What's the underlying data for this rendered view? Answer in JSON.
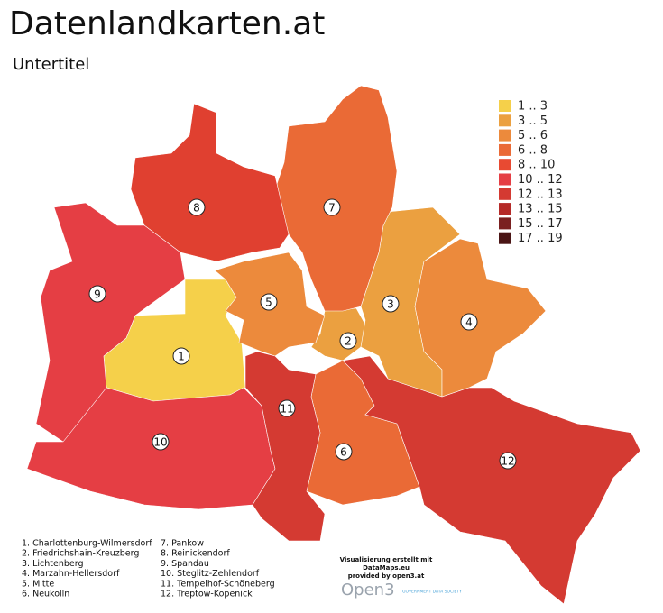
{
  "header": {
    "title": "Datenlandkarten.at",
    "subtitle": "Untertitel"
  },
  "legend": [
    {
      "label": "1 .. 3",
      "color": "#f5d04a"
    },
    {
      "label": "3 .. 5",
      "color": "#eba040"
    },
    {
      "label": "5 .. 6",
      "color": "#ec8a3c"
    },
    {
      "label": "6 .. 8",
      "color": "#ea6a36"
    },
    {
      "label": "8 .. 10",
      "color": "#e84a32"
    },
    {
      "label": "10 .. 12",
      "color": "#e53e44"
    },
    {
      "label": "12 .. 13",
      "color": "#d43a32"
    },
    {
      "label": "13 .. 15",
      "color": "#b52a28"
    },
    {
      "label": "15 .. 17",
      "color": "#7a2020"
    },
    {
      "label": "17 .. 19",
      "color": "#4a1515"
    }
  ],
  "districts": [
    {
      "marker": "1",
      "list_entry": "1. Charlottenburg-Wilmersdorf",
      "color": "#f5d04a"
    },
    {
      "marker": "2",
      "list_entry": "2. Friedrichshain-Kreuzberg",
      "color": "#eba040"
    },
    {
      "marker": "3",
      "list_entry": "3. Lichtenberg",
      "color": "#eba040"
    },
    {
      "marker": "4",
      "list_entry": "4. Marzahn-Hellersdorf",
      "color": "#ec8a3c"
    },
    {
      "marker": "5",
      "list_entry": "5. Mitte",
      "color": "#ec8a3c"
    },
    {
      "marker": "6",
      "list_entry": "6. Neukölln",
      "color": "#ea6a36"
    },
    {
      "marker": "7",
      "list_entry": "7. Pankow",
      "color": "#ea6a36"
    },
    {
      "marker": "8",
      "list_entry": "8. Reinickendorf",
      "color": "#e04030"
    },
    {
      "marker": "9",
      "list_entry": "9. Spandau",
      "color": "#e53e44"
    },
    {
      "marker": "10",
      "list_entry": "10. Steglitz-Zehlendorf",
      "color": "#e53e44"
    },
    {
      "marker": "11",
      "list_entry": "11. Tempelhof-Schöneberg",
      "color": "#d43a32"
    },
    {
      "marker": "12",
      "list_entry": "12. Treptow-Köpenick",
      "color": "#d43a32"
    }
  ],
  "credits": {
    "line1": "Visualisierung erstellt mit",
    "line2": "DataMaps.eu",
    "line3": "provided by open3.at",
    "logo": "Open3",
    "logo_tagline": "GOVERNMENT DATA SOCIETY"
  }
}
